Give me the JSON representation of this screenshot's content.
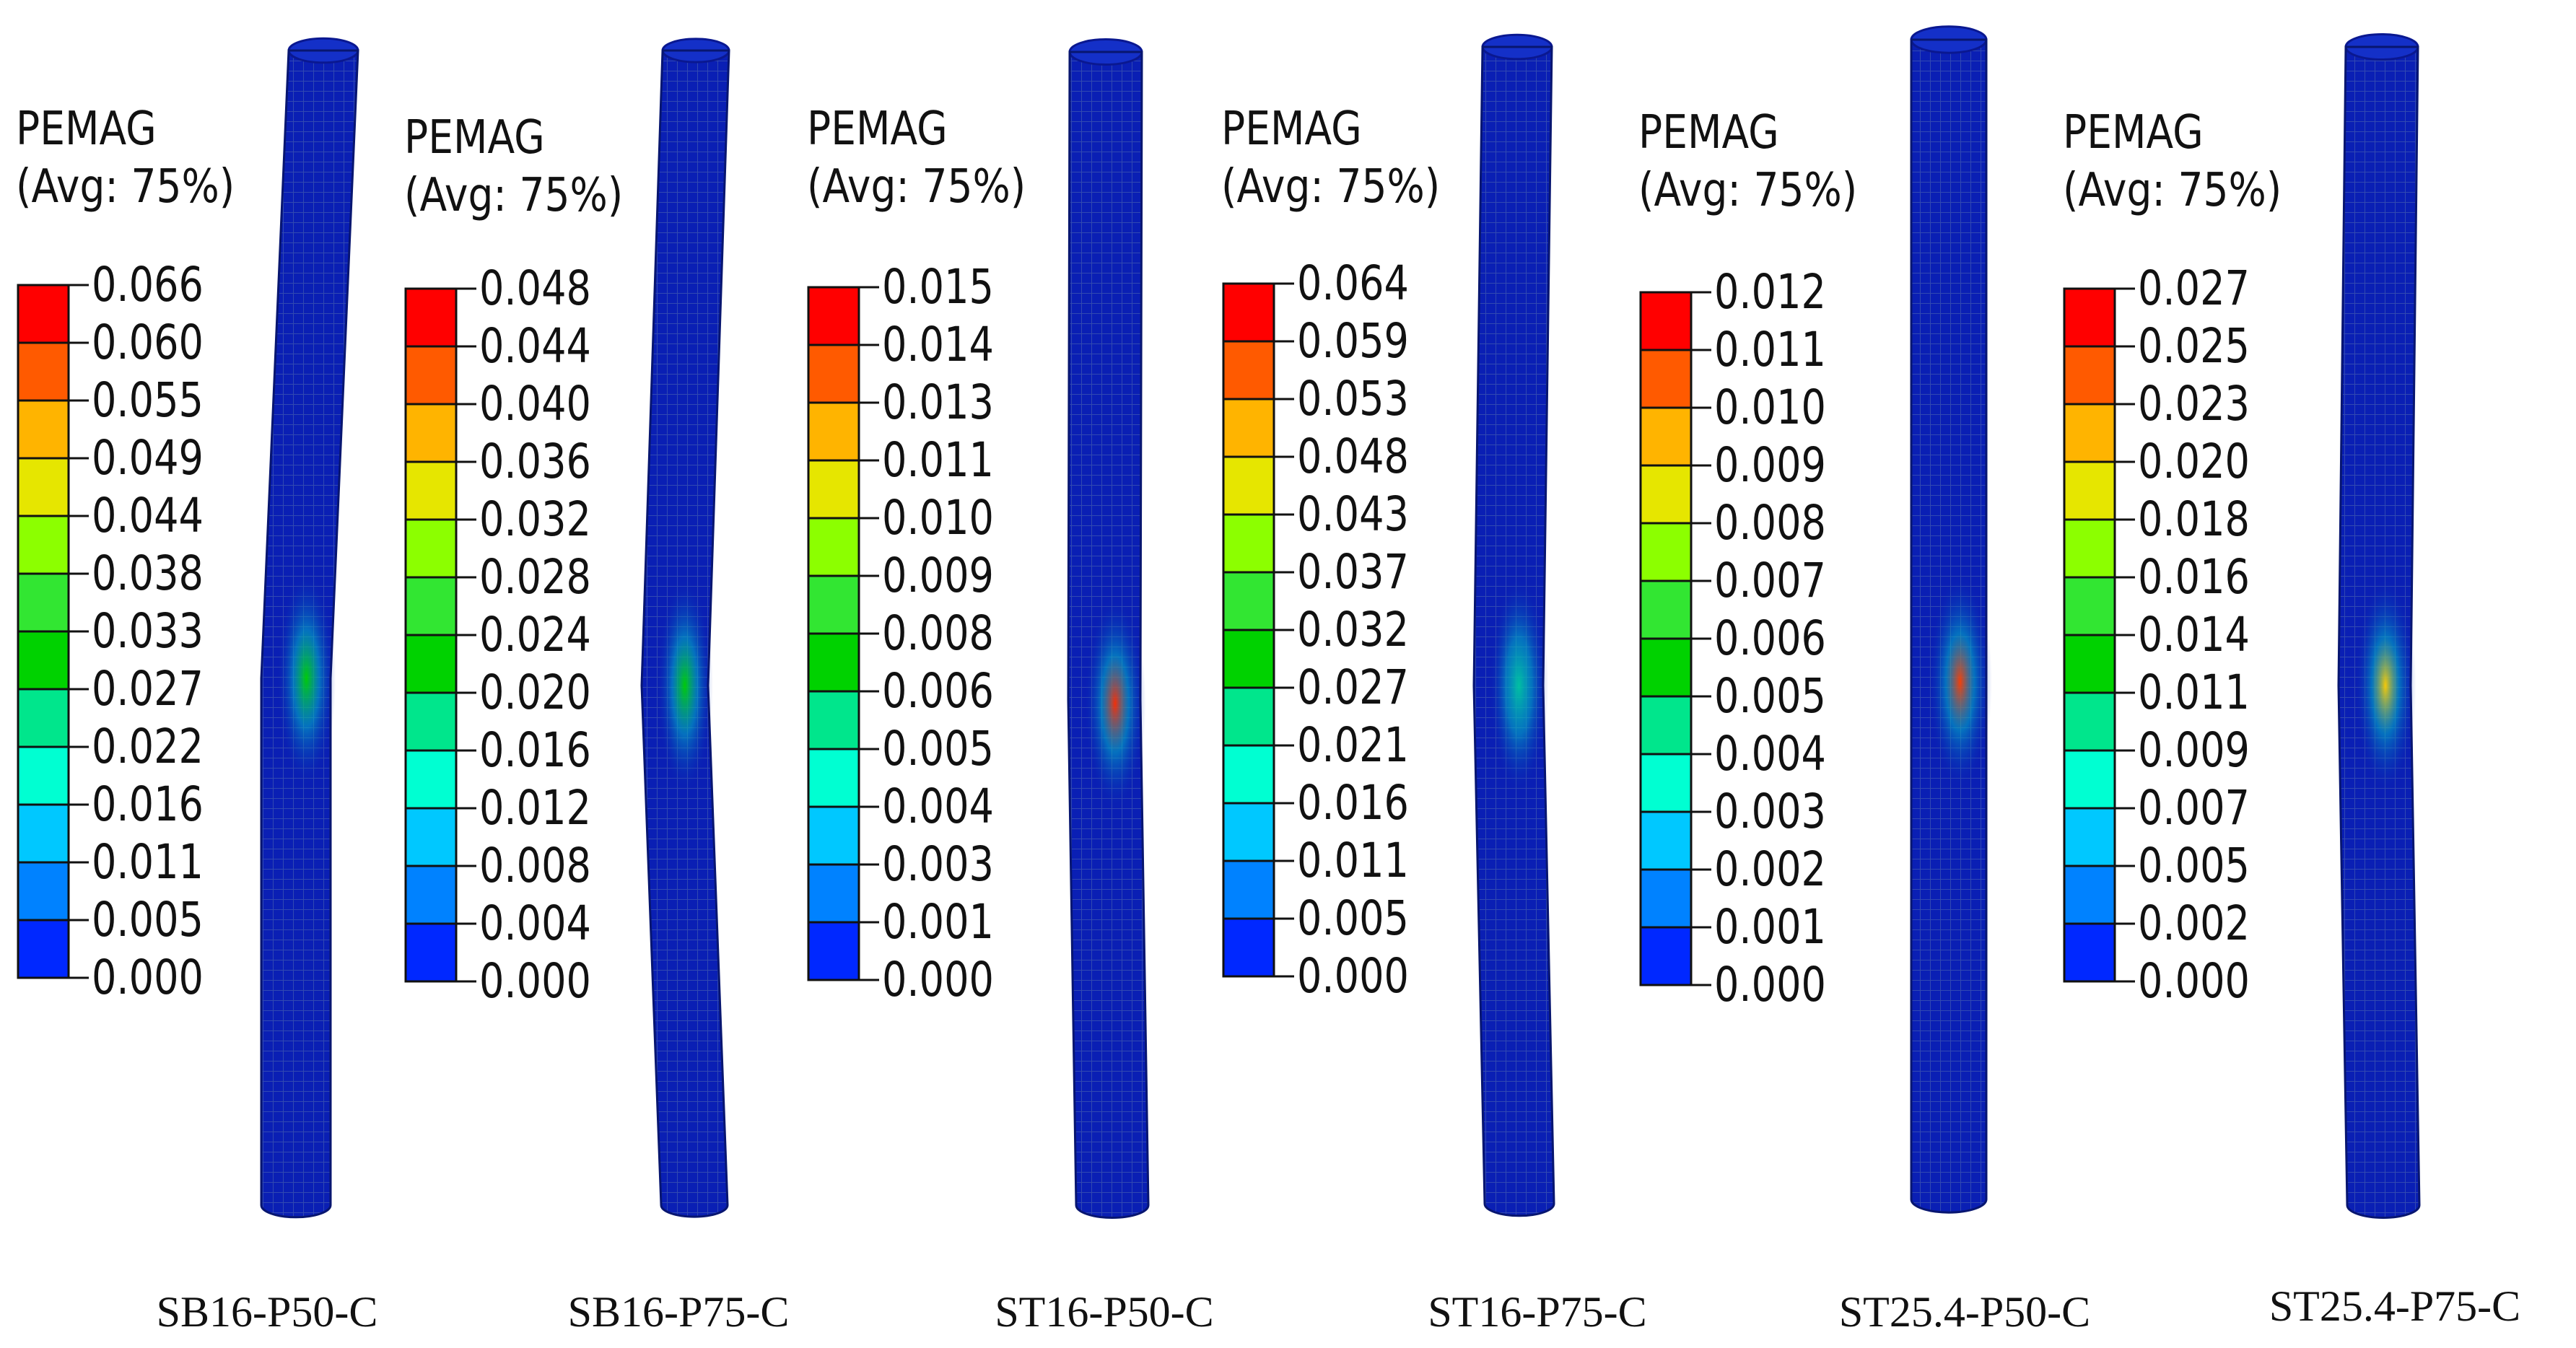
{
  "legend_colors": [
    "#ff0000",
    "#ff5a00",
    "#ffb400",
    "#e6e600",
    "#8cff00",
    "#32e632",
    "#00d200",
    "#00e68c",
    "#00ffd2",
    "#00c8ff",
    "#0082ff",
    "#0028ff"
  ],
  "contour_background": "#0a1fb4",
  "mesh_line_color": "#3850b0",
  "panels": [
    {
      "caption": "SB16-P50-C",
      "legend": {
        "title_line1": "PEMAG",
        "title_line2": "(Avg: 75%)",
        "ticks": [
          "0.066",
          "0.060",
          "0.055",
          "0.049",
          "0.044",
          "0.038",
          "0.033",
          "0.027",
          "0.022",
          "0.016",
          "0.011",
          "0.005",
          "0.000"
        ]
      },
      "hotspot_color": "#00d200"
    },
    {
      "caption": "SB16-P75-C",
      "legend": {
        "title_line1": "PEMAG",
        "title_line2": "(Avg: 75%)",
        "ticks": [
          "0.048",
          "0.044",
          "0.040",
          "0.036",
          "0.032",
          "0.028",
          "0.024",
          "0.020",
          "0.016",
          "0.012",
          "0.008",
          "0.004",
          "0.000"
        ]
      },
      "hotspot_color": "#00d200"
    },
    {
      "caption": "ST16-P50-C",
      "legend": {
        "title_line1": "PEMAG",
        "title_line2": "(Avg: 75%)",
        "ticks": [
          "0.015",
          "0.014",
          "0.013",
          "0.011",
          "0.010",
          "0.009",
          "0.008",
          "0.006",
          "0.005",
          "0.004",
          "0.003",
          "0.001",
          "0.000"
        ]
      },
      "hotspot_color": "#ff3000"
    },
    {
      "caption": "ST16-P75-C",
      "legend": {
        "title_line1": "PEMAG",
        "title_line2": "(Avg: 75%)",
        "ticks": [
          "0.064",
          "0.059",
          "0.053",
          "0.048",
          "0.043",
          "0.037",
          "0.032",
          "0.027",
          "0.021",
          "0.016",
          "0.011",
          "0.005",
          "0.000"
        ]
      },
      "hotspot_color": "#00c8a0"
    },
    {
      "caption": "ST25.4-P50-C",
      "legend": {
        "title_line1": "PEMAG",
        "title_line2": "(Avg: 75%)",
        "ticks": [
          "0.012",
          "0.011",
          "0.010",
          "0.009",
          "0.008",
          "0.007",
          "0.006",
          "0.005",
          "0.004",
          "0.003",
          "0.002",
          "0.001",
          "0.000"
        ]
      },
      "hotspot_color": "#ff4000"
    },
    {
      "caption": "ST25.4-P75-C",
      "legend": {
        "title_line1": "PEMAG",
        "title_line2": "(Avg: 75%)",
        "ticks": [
          "0.027",
          "0.025",
          "0.023",
          "0.020",
          "0.018",
          "0.016",
          "0.014",
          "0.011",
          "0.009",
          "0.007",
          "0.005",
          "0.002",
          "0.000"
        ]
      },
      "hotspot_color": "#ffd000"
    }
  ]
}
